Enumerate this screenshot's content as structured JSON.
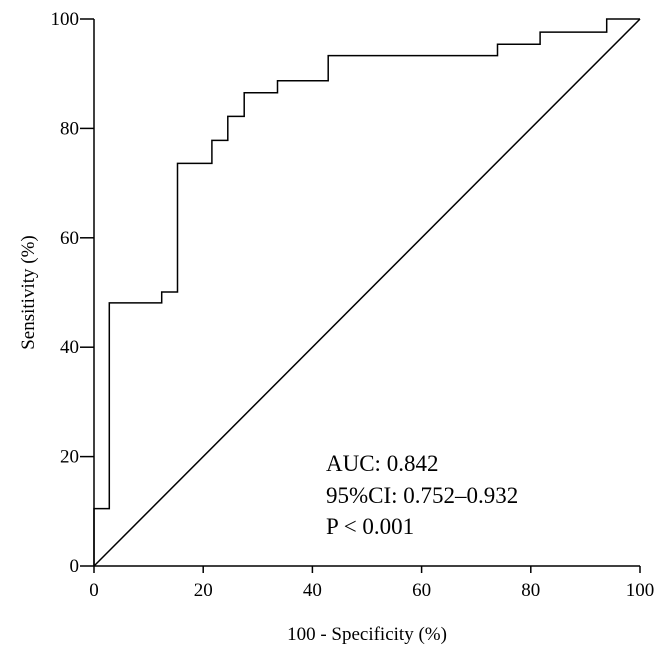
{
  "chart_data": {
    "type": "line",
    "xlabel": "100 - Specificity (%)",
    "ylabel": "Sensitivity (%)",
    "xlim": [
      0,
      100
    ],
    "ylim": [
      0,
      100
    ],
    "xticks": [
      0,
      20,
      40,
      60,
      80,
      100
    ],
    "yticks": [
      0,
      20,
      40,
      60,
      80,
      100
    ],
    "grid": false,
    "series": [
      {
        "style": "step",
        "x": [
          0,
          0,
          2.8,
          2.8,
          12.4,
          12.4,
          15.3,
          15.3,
          21.6,
          21.6,
          24.5,
          24.5,
          27.5,
          27.5,
          33.6,
          33.6,
          42.9,
          42.9,
          73.9,
          73.9,
          81.7,
          81.7,
          93.9,
          93.9,
          100
        ],
        "y": [
          0,
          10.5,
          10.5,
          48.1,
          48.1,
          50.1,
          50.1,
          73.6,
          73.6,
          77.8,
          77.8,
          82.2,
          82.2,
          86.5,
          86.5,
          88.7,
          88.7,
          93.3,
          93.3,
          95.4,
          95.4,
          97.6,
          97.6,
          100,
          100
        ]
      },
      {
        "style": "reference",
        "x": [
          0,
          100
        ],
        "y": [
          0,
          100
        ]
      }
    ],
    "annotations": [
      "AUC: 0.842",
      "95%CI: 0.752–0.932",
      "P < 0.001"
    ]
  }
}
